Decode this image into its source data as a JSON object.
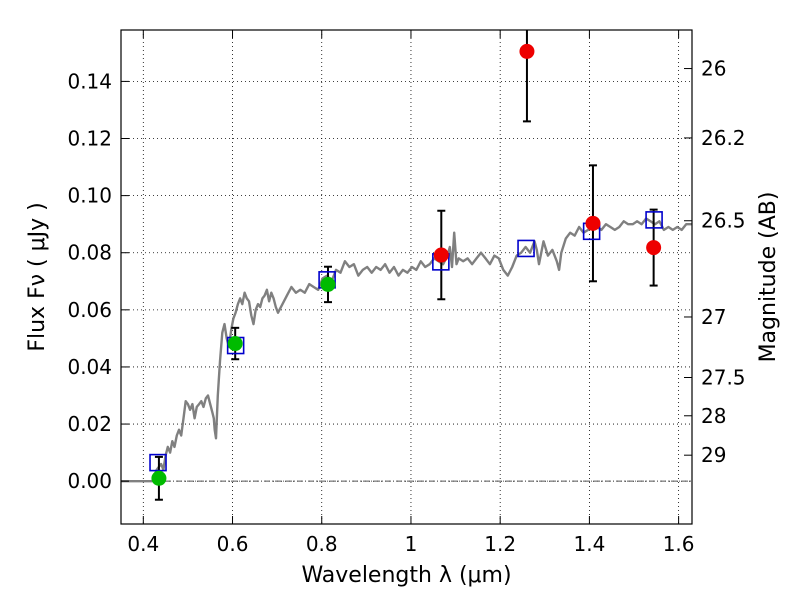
{
  "chart_data": {
    "type": "scatter",
    "xlabel": "Wavelength  λ (μm)",
    "ylabel": "Flux  Fν  ( μJy )",
    "y2label": "Magnitude (AB)",
    "xlim": [
      0.35,
      1.63
    ],
    "ylim": [
      -0.015,
      0.158
    ],
    "grid": true,
    "x_ticks": [
      0.4,
      0.6,
      0.8,
      1.0,
      1.2,
      1.4,
      1.6
    ],
    "x_tick_labels": [
      "0.4",
      "0.6",
      "0.8",
      "1",
      "1.2",
      "1.4",
      "1.6"
    ],
    "y_ticks": [
      0.0,
      0.02,
      0.04,
      0.06,
      0.08,
      0.1,
      0.12,
      0.14
    ],
    "y_tick_labels": [
      "0.00",
      "0.02",
      "0.04",
      "0.06",
      "0.08",
      "0.10",
      "0.12",
      "0.14"
    ],
    "y2_ticks": [
      {
        "label": "26",
        "flux": 0.1445
      },
      {
        "label": "26.2",
        "flux": 0.1202
      },
      {
        "label": "26.5",
        "flux": 0.0912
      },
      {
        "label": "27",
        "flux": 0.0575
      },
      {
        "label": "27.5",
        "flux": 0.0363
      },
      {
        "label": "28",
        "flux": 0.0229
      },
      {
        "label": "29",
        "flux": 0.0091
      }
    ],
    "zero_line": 0.0,
    "colors": {
      "sed": "#808080",
      "green": "#00bb00",
      "red": "#ee0000",
      "model": "#0000cc",
      "errorbar": "#000000",
      "zero_line": "#555555"
    },
    "series": [
      {
        "kind": "line",
        "color": "#808080",
        "points": [
          [
            0.35,
            0.0
          ],
          [
            0.42,
            0.0
          ],
          [
            0.425,
            0.002
          ],
          [
            0.43,
            0.004
          ],
          [
            0.44,
            0.006
          ],
          [
            0.445,
            0.004
          ],
          [
            0.45,
            0.009
          ],
          [
            0.455,
            0.012
          ],
          [
            0.46,
            0.01
          ],
          [
            0.465,
            0.014
          ],
          [
            0.47,
            0.012
          ],
          [
            0.475,
            0.016
          ],
          [
            0.48,
            0.018
          ],
          [
            0.485,
            0.016
          ],
          [
            0.49,
            0.022
          ],
          [
            0.495,
            0.028
          ],
          [
            0.5,
            0.027
          ],
          [
            0.505,
            0.025
          ],
          [
            0.51,
            0.027
          ],
          [
            0.515,
            0.022
          ],
          [
            0.52,
            0.026
          ],
          [
            0.525,
            0.027
          ],
          [
            0.53,
            0.028
          ],
          [
            0.535,
            0.026
          ],
          [
            0.54,
            0.029
          ],
          [
            0.545,
            0.03
          ],
          [
            0.55,
            0.027
          ],
          [
            0.555,
            0.024
          ],
          [
            0.558,
            0.022
          ],
          [
            0.56,
            0.018
          ],
          [
            0.563,
            0.015
          ],
          [
            0.567,
            0.03
          ],
          [
            0.572,
            0.042
          ],
          [
            0.577,
            0.052
          ],
          [
            0.582,
            0.055
          ],
          [
            0.587,
            0.05
          ],
          [
            0.592,
            0.047
          ],
          [
            0.597,
            0.053
          ],
          [
            0.602,
            0.057
          ],
          [
            0.607,
            0.059
          ],
          [
            0.612,
            0.062
          ],
          [
            0.617,
            0.064
          ],
          [
            0.622,
            0.062
          ],
          [
            0.627,
            0.066
          ],
          [
            0.632,
            0.064
          ],
          [
            0.637,
            0.063
          ],
          [
            0.642,
            0.058
          ],
          [
            0.647,
            0.055
          ],
          [
            0.652,
            0.06
          ],
          [
            0.657,
            0.062
          ],
          [
            0.662,
            0.061
          ],
          [
            0.667,
            0.064
          ],
          [
            0.672,
            0.065
          ],
          [
            0.677,
            0.067
          ],
          [
            0.682,
            0.063
          ],
          [
            0.687,
            0.066
          ],
          [
            0.692,
            0.064
          ],
          [
            0.697,
            0.061
          ],
          [
            0.702,
            0.059
          ],
          [
            0.712,
            0.062
          ],
          [
            0.722,
            0.065
          ],
          [
            0.732,
            0.068
          ],
          [
            0.742,
            0.066
          ],
          [
            0.752,
            0.067
          ],
          [
            0.762,
            0.066
          ],
          [
            0.772,
            0.069
          ],
          [
            0.782,
            0.068
          ],
          [
            0.792,
            0.067
          ],
          [
            0.802,
            0.071
          ],
          [
            0.812,
            0.072
          ],
          [
            0.822,
            0.07
          ],
          [
            0.832,
            0.074
          ],
          [
            0.842,
            0.073
          ],
          [
            0.852,
            0.077
          ],
          [
            0.862,
            0.075
          ],
          [
            0.872,
            0.076
          ],
          [
            0.882,
            0.072
          ],
          [
            0.892,
            0.074
          ],
          [
            0.902,
            0.075
          ],
          [
            0.912,
            0.073
          ],
          [
            0.922,
            0.075
          ],
          [
            0.932,
            0.074
          ],
          [
            0.942,
            0.076
          ],
          [
            0.952,
            0.073
          ],
          [
            0.962,
            0.075
          ],
          [
            0.972,
            0.072
          ],
          [
            0.982,
            0.074
          ],
          [
            0.992,
            0.073
          ],
          [
            1.002,
            0.075
          ],
          [
            1.012,
            0.074
          ],
          [
            1.022,
            0.077
          ],
          [
            1.032,
            0.075
          ],
          [
            1.042,
            0.076
          ],
          [
            1.052,
            0.078
          ],
          [
            1.062,
            0.077
          ],
          [
            1.072,
            0.076
          ],
          [
            1.082,
            0.079
          ],
          [
            1.087,
            0.082
          ],
          [
            1.092,
            0.075
          ],
          [
            1.097,
            0.087
          ],
          [
            1.102,
            0.076
          ],
          [
            1.107,
            0.078
          ],
          [
            1.117,
            0.077
          ],
          [
            1.127,
            0.078
          ],
          [
            1.137,
            0.076
          ],
          [
            1.147,
            0.078
          ],
          [
            1.157,
            0.08
          ],
          [
            1.167,
            0.078
          ],
          [
            1.177,
            0.076
          ],
          [
            1.187,
            0.079
          ],
          [
            1.197,
            0.078
          ],
          [
            1.207,
            0.074
          ],
          [
            1.217,
            0.072
          ],
          [
            1.227,
            0.075
          ],
          [
            1.237,
            0.079
          ],
          [
            1.247,
            0.08
          ],
          [
            1.257,
            0.082
          ],
          [
            1.267,
            0.08
          ],
          [
            1.277,
            0.084
          ],
          [
            1.282,
            0.081
          ],
          [
            1.287,
            0.076
          ],
          [
            1.297,
            0.084
          ],
          [
            1.307,
            0.079
          ],
          [
            1.317,
            0.081
          ],
          [
            1.327,
            0.077
          ],
          [
            1.332,
            0.074
          ],
          [
            1.337,
            0.08
          ],
          [
            1.347,
            0.085
          ],
          [
            1.357,
            0.087
          ],
          [
            1.367,
            0.086
          ],
          [
            1.377,
            0.089
          ],
          [
            1.387,
            0.087
          ],
          [
            1.397,
            0.088
          ],
          [
            1.407,
            0.09
          ],
          [
            1.417,
            0.089
          ],
          [
            1.427,
            0.088
          ],
          [
            1.437,
            0.09
          ],
          [
            1.447,
            0.089
          ],
          [
            1.457,
            0.088
          ],
          [
            1.467,
            0.089
          ],
          [
            1.477,
            0.091
          ],
          [
            1.487,
            0.09
          ],
          [
            1.497,
            0.09
          ],
          [
            1.507,
            0.091
          ],
          [
            1.517,
            0.09
          ],
          [
            1.527,
            0.092
          ],
          [
            1.537,
            0.091
          ],
          [
            1.547,
            0.09
          ],
          [
            1.557,
            0.091
          ],
          [
            1.567,
            0.088
          ],
          [
            1.577,
            0.089
          ],
          [
            1.587,
            0.088
          ],
          [
            1.597,
            0.089
          ],
          [
            1.607,
            0.088
          ],
          [
            1.617,
            0.09
          ],
          [
            1.63,
            0.09
          ]
        ]
      },
      {
        "kind": "points",
        "marker": "circle",
        "color": "#00bb00",
        "points": [
          {
            "x": 0.435,
            "y": 0.001,
            "err": 0.0075
          },
          {
            "x": 0.606,
            "y": 0.0482,
            "err": 0.0055
          },
          {
            "x": 0.814,
            "y": 0.0689,
            "err": 0.0062
          }
        ]
      },
      {
        "kind": "points",
        "marker": "circle",
        "color": "#ee0000",
        "points": [
          {
            "x": 1.068,
            "y": 0.0792,
            "err": 0.0155
          },
          {
            "x": 1.26,
            "y": 0.1505,
            "err": 0.0245
          },
          {
            "x": 1.408,
            "y": 0.0903,
            "err": 0.0203
          },
          {
            "x": 1.544,
            "y": 0.0818,
            "err": 0.0133
          }
        ]
      },
      {
        "kind": "points",
        "marker": "square",
        "color": "#0000cc",
        "points": [
          {
            "x": 0.433,
            "y": 0.0065
          },
          {
            "x": 0.607,
            "y": 0.0475
          },
          {
            "x": 0.812,
            "y": 0.0705
          },
          {
            "x": 1.067,
            "y": 0.0768
          },
          {
            "x": 1.258,
            "y": 0.0815
          },
          {
            "x": 1.405,
            "y": 0.0875
          },
          {
            "x": 1.545,
            "y": 0.0915
          }
        ]
      }
    ]
  }
}
